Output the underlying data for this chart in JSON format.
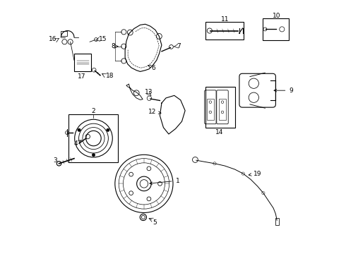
{
  "bg_color": "#ffffff",
  "line_color": "#000000",
  "figsize": [
    4.9,
    3.6
  ],
  "dpi": 100,
  "label_fontsize": 6.5,
  "lw": 0.8
}
